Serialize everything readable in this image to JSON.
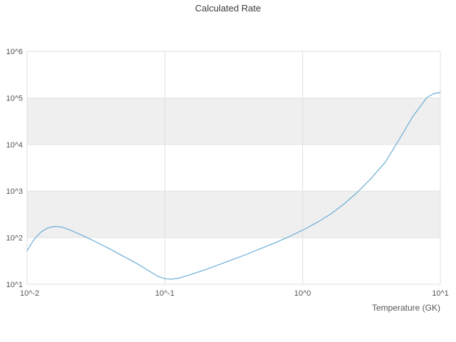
{
  "chart_data": {
    "type": "line",
    "title": "Calculated Rate",
    "xlabel": "Temperature (GK)",
    "ylabel": "",
    "x_ticks": [
      "10^-2",
      "10^-1",
      "10^0",
      "10^1"
    ],
    "x_tick_log": [
      -2,
      -1,
      0,
      1
    ],
    "y_ticks": [
      "10^1",
      "10^2",
      "10^3",
      "10^4",
      "10^5",
      "10^6"
    ],
    "y_tick_log": [
      1,
      2,
      3,
      4,
      5,
      6
    ],
    "xlim_log": [
      -2,
      1
    ],
    "ylim_log": [
      1,
      6
    ],
    "grid": true,
    "legend": "none",
    "colors": {
      "line": "#6baed6",
      "band": "#efefef",
      "grid": "#e2e2e2",
      "title_text": "#3c3c3c",
      "tick_text": "#555555"
    },
    "bands_log": [
      [
        2,
        3
      ],
      [
        4,
        5
      ]
    ],
    "series": [
      {
        "name": "calculated-rate",
        "color": "#6baed6",
        "points_log": [
          [
            -2.0,
            1.72
          ],
          [
            -1.95,
            1.96
          ],
          [
            -1.9,
            2.12
          ],
          [
            -1.85,
            2.21
          ],
          [
            -1.8,
            2.24
          ],
          [
            -1.75,
            2.23
          ],
          [
            -1.7,
            2.18
          ],
          [
            -1.6,
            2.05
          ],
          [
            -1.5,
            1.91
          ],
          [
            -1.4,
            1.76
          ],
          [
            -1.3,
            1.6
          ],
          [
            -1.2,
            1.44
          ],
          [
            -1.1,
            1.26
          ],
          [
            -1.05,
            1.17
          ],
          [
            -1.0,
            1.12
          ],
          [
            -0.95,
            1.11
          ],
          [
            -0.9,
            1.13
          ],
          [
            -0.8,
            1.22
          ],
          [
            -0.7,
            1.32
          ],
          [
            -0.6,
            1.43
          ],
          [
            -0.5,
            1.54
          ],
          [
            -0.4,
            1.65
          ],
          [
            -0.3,
            1.77
          ],
          [
            -0.2,
            1.89
          ],
          [
            -0.1,
            2.02
          ],
          [
            0.0,
            2.16
          ],
          [
            0.1,
            2.32
          ],
          [
            0.2,
            2.5
          ],
          [
            0.3,
            2.72
          ],
          [
            0.4,
            2.98
          ],
          [
            0.5,
            3.28
          ],
          [
            0.6,
            3.62
          ],
          [
            0.7,
            4.1
          ],
          [
            0.8,
            4.6
          ],
          [
            0.9,
            5.0
          ],
          [
            0.95,
            5.09
          ],
          [
            1.0,
            5.12
          ]
        ]
      }
    ]
  }
}
